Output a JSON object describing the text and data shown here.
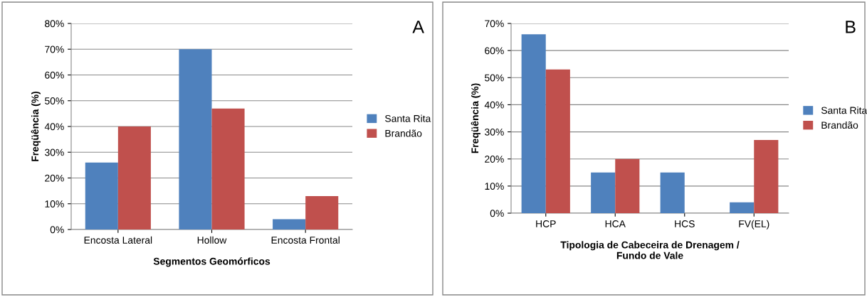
{
  "chart_data": [
    {
      "type": "bar",
      "xlabel": "Segmentos Geomórficos",
      "ylabel": "Freqüência (%)",
      "categories": [
        "Encosta Lateral",
        "Hollow",
        "Encosta Frontal"
      ],
      "series": [
        {
          "name": "Santa Rita",
          "color": "#4f81bd",
          "values": [
            26,
            70,
            4
          ]
        },
        {
          "name": "Brandão",
          "color": "#c0504d",
          "values": [
            40,
            47,
            13
          ]
        }
      ],
      "ylim": [
        0,
        80
      ],
      "yticks": [
        {
          "value": 0,
          "label": "0%"
        },
        {
          "value": 10,
          "label": "10%"
        },
        {
          "value": 20,
          "label": "20%"
        },
        {
          "value": 30,
          "label": "30%"
        },
        {
          "value": 40,
          "label": "40%"
        },
        {
          "value": 50,
          "label": "50%"
        },
        {
          "value": 60,
          "label": "60%"
        },
        {
          "value": 70,
          "label": "70%"
        },
        {
          "value": 80,
          "label": "80%"
        }
      ],
      "grid": "y",
      "legend": "right",
      "annotations": [
        "A"
      ]
    },
    {
      "type": "bar",
      "xlabel": "Tipologia de Cabeceira de Drenagem /\nFundo de Vale",
      "ylabel": "Freqüência (%)",
      "categories": [
        "HCP",
        "HCA",
        "HCS",
        "FV(EL)"
      ],
      "series": [
        {
          "name": "Santa Rita",
          "color": "#4f81bd",
          "values": [
            66,
            15,
            15,
            4
          ]
        },
        {
          "name": "Brandão",
          "color": "#c0504d",
          "values": [
            53,
            20,
            0,
            27
          ]
        }
      ],
      "ylim": [
        0,
        70
      ],
      "yticks": [
        {
          "value": 0,
          "label": "0%"
        },
        {
          "value": 10,
          "label": "10%"
        },
        {
          "value": 20,
          "label": "20%"
        },
        {
          "value": 30,
          "label": "30%"
        },
        {
          "value": 40,
          "label": "40%"
        },
        {
          "value": 50,
          "label": "50%"
        },
        {
          "value": 60,
          "label": "60%"
        },
        {
          "value": 70,
          "label": "70%"
        }
      ],
      "grid": "y",
      "legend": "right",
      "annotations": [
        "B"
      ]
    }
  ]
}
